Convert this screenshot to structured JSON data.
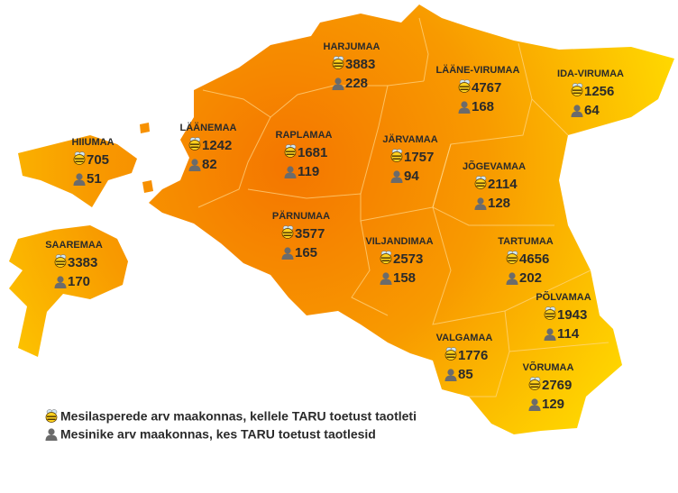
{
  "regions": [
    {
      "name": "HARJUMAA",
      "colonies": "3883",
      "beekeepers": "228"
    },
    {
      "name": "LÄÄNE-VIRUMAA",
      "colonies": "4767",
      "beekeepers": "168"
    },
    {
      "name": "IDA-VIRUMAA",
      "colonies": "1256",
      "beekeepers": "64"
    },
    {
      "name": "HIIUMAA",
      "colonies": "705",
      "beekeepers": "51"
    },
    {
      "name": "LÄÄNEMAA",
      "colonies": "1242",
      "beekeepers": "82"
    },
    {
      "name": "RAPLAMAA",
      "colonies": "1681",
      "beekeepers": "119"
    },
    {
      "name": "JÄRVAMAA",
      "colonies": "1757",
      "beekeepers": "94"
    },
    {
      "name": "JÕGEVAMAA",
      "colonies": "2114",
      "beekeepers": "128"
    },
    {
      "name": "PÄRNUMAA",
      "colonies": "3577",
      "beekeepers": "165"
    },
    {
      "name": "VILJANDIMAA",
      "colonies": "2573",
      "beekeepers": "158"
    },
    {
      "name": "TARTUMAA",
      "colonies": "4656",
      "beekeepers": "202"
    },
    {
      "name": "SAAREMAA",
      "colonies": "3383",
      "beekeepers": "170"
    },
    {
      "name": "PÕLVAMAA",
      "colonies": "1943",
      "beekeepers": "114"
    },
    {
      "name": "VALGAMAA",
      "colonies": "1776",
      "beekeepers": "85"
    },
    {
      "name": "VÕRUMAA",
      "colonies": "2769",
      "beekeepers": "129"
    }
  ],
  "legend": {
    "colonies": "Mesilasperede arv maakonnas, kellele TARU toetust taotleti",
    "beekeepers": "Mesinike arv maakonnas, kes TARU toetust taotlesid"
  }
}
